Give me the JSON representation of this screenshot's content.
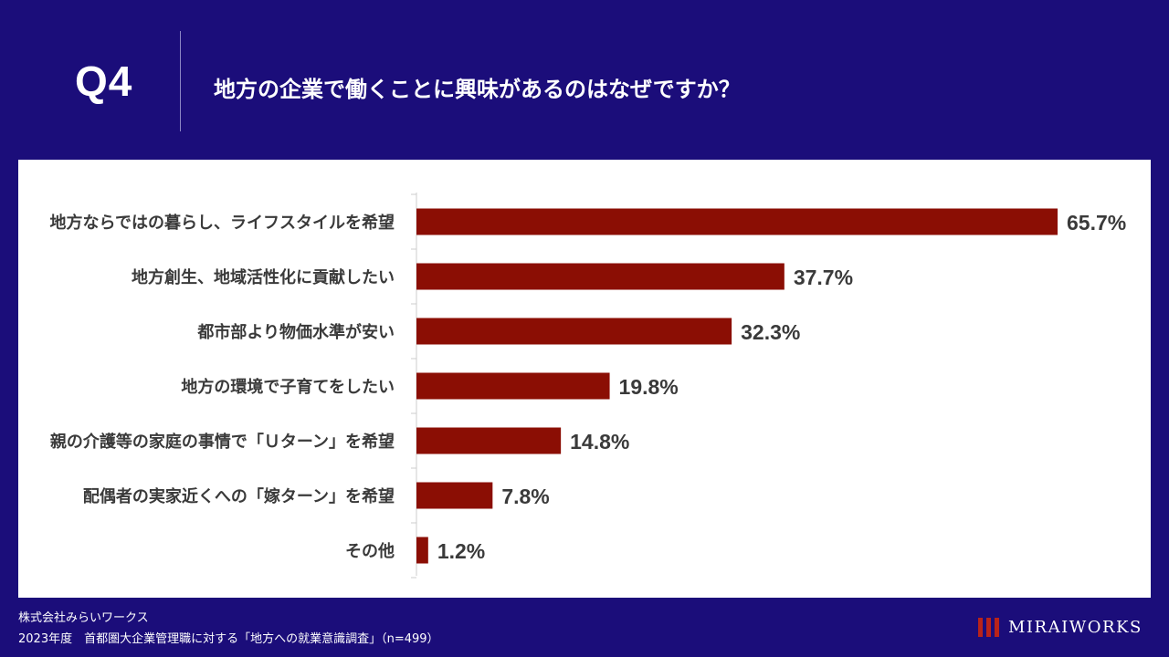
{
  "header": {
    "q_label": "Q4",
    "question": "地方の企業で働くことに興味があるのはなぜですか？"
  },
  "chart_data": {
    "type": "bar",
    "orientation": "horizontal",
    "categories": [
      "地方ならではの暮らし、ライフスタイルを希望",
      "地方創生、地域活性化に貢献したい",
      "都市部より物価水準が安い",
      "地方の環境で子育てをしたい",
      "親の介護等の家庭の事情で「Ｕターン」を希望",
      "配偶者の実家近くへの「嫁ターン」を希望",
      "その他"
    ],
    "values": [
      65.7,
      37.7,
      32.3,
      19.8,
      14.8,
      7.8,
      1.2
    ],
    "value_labels": [
      "65.7%",
      "37.7%",
      "32.3%",
      "19.8%",
      "14.8%",
      "7.8%",
      "1.2%"
    ],
    "xlim": [
      0,
      65.7
    ],
    "grid": false,
    "bar_color": "#8b0e04"
  },
  "footer": {
    "company": "株式会社みらいワークス",
    "survey": "2023年度　首都圏大企業管理職に対する「地方への就業意識調査」（n=499）",
    "brand_name": "MIRAIWORKS",
    "brand_color": "#b8231a"
  },
  "colors": {
    "background": "#1b0d7a",
    "panel": "#ffffff",
    "label_text": "#3a3a3a"
  }
}
